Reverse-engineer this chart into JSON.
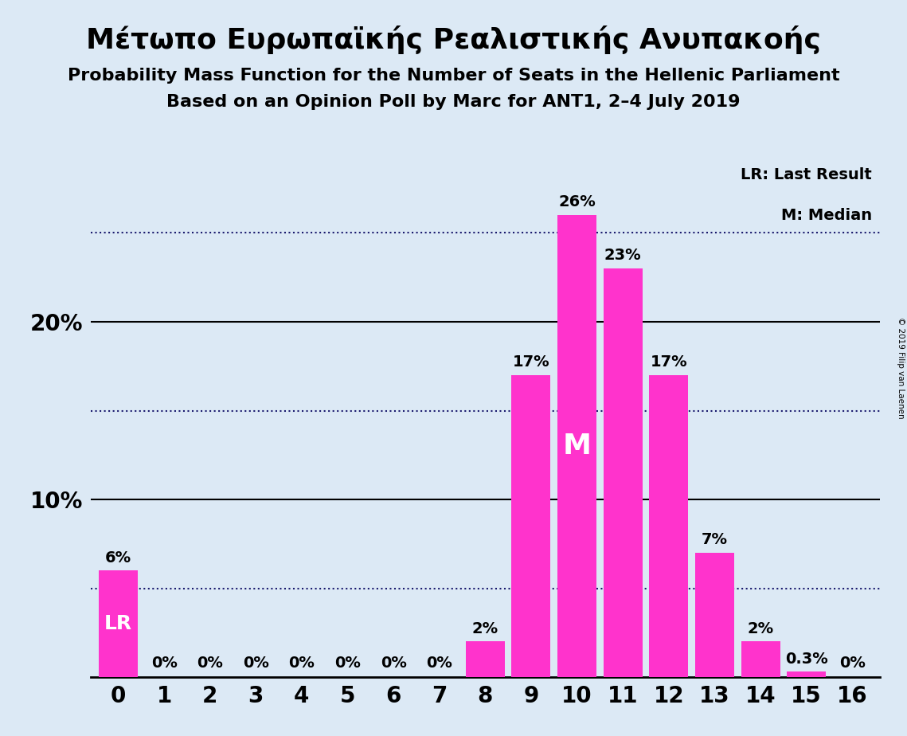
{
  "categories": [
    0,
    1,
    2,
    3,
    4,
    5,
    6,
    7,
    8,
    9,
    10,
    11,
    12,
    13,
    14,
    15,
    16
  ],
  "values": [
    6,
    0,
    0,
    0,
    0,
    0,
    0,
    0,
    2,
    17,
    26,
    23,
    17,
    7,
    2,
    0.3,
    0
  ],
  "bar_color": "#FF33CC",
  "background_color": "#dce9f5",
  "title": "Μέτωπο Ευρωπαϊκής Ρεαλιστικής Ανυπακοής",
  "subtitle1": "Probability Mass Function for the Number of Seats in the Hellenic Parliament",
  "subtitle2": "Based on an Opinion Poll by Marc for ANT1, 2–4 July 2019",
  "ylabel_ticks": [
    10,
    20
  ],
  "dotted_lines": [
    5,
    15,
    25
  ],
  "lr_bar": 0,
  "median_bar": 10,
  "legend_text1": "LR: Last Result",
  "legend_text2": "M: Median",
  "copyright": "© 2019 Filip van Laenen",
  "bar_labels": [
    "6%",
    "0%",
    "0%",
    "0%",
    "0%",
    "0%",
    "0%",
    "0%",
    "2%",
    "17%",
    "26%",
    "23%",
    "17%",
    "7%",
    "2%",
    "0.3%",
    "0%"
  ],
  "title_fontsize": 26,
  "subtitle_fontsize": 16,
  "axis_label_fontsize": 20,
  "bar_label_fontsize": 14,
  "ylim": [
    0,
    29
  ]
}
